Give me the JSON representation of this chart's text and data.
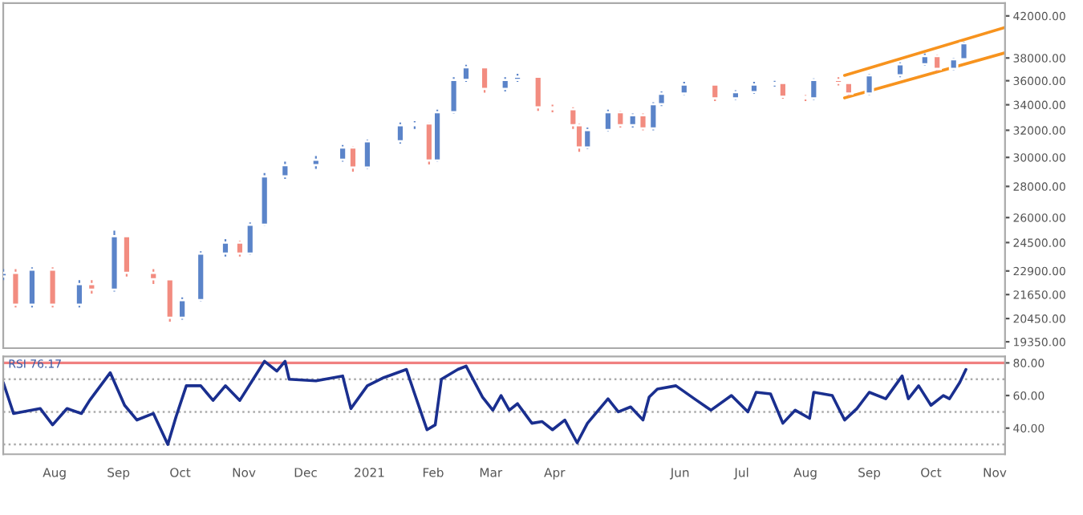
{
  "chart_data": [
    {
      "type": "candlestick",
      "x": [
        "2020-07-07",
        "2020-07-13",
        "2020-07-21",
        "2020-07-31",
        "2020-08-13",
        "2020-08-19",
        "2020-08-30",
        "2020-09-05",
        "2020-09-18",
        "2020-09-26",
        "2020-10-02",
        "2020-10-11",
        "2020-10-23",
        "2020-10-30",
        "2020-11-04",
        "2020-11-11",
        "2020-11-21",
        "2020-12-06",
        "2020-12-19",
        "2020-12-24",
        "2020-12-31",
        "2021-01-16",
        "2021-01-23",
        "2021-01-30",
        "2021-02-03",
        "2021-02-11",
        "2021-02-17",
        "2021-02-26",
        "2021-03-08",
        "2021-03-14",
        "2021-03-24",
        "2021-03-31",
        "2021-04-10",
        "2021-04-13",
        "2021-04-17",
        "2021-04-27",
        "2021-05-03",
        "2021-05-09",
        "2021-05-14",
        "2021-05-19",
        "2021-05-23",
        "2021-06-03",
        "2021-06-18",
        "2021-06-28",
        "2021-07-07",
        "2021-07-17",
        "2021-07-21",
        "2021-08-01",
        "2021-08-05",
        "2021-08-17",
        "2021-08-22",
        "2021-09-01",
        "2021-09-16",
        "2021-09-28",
        "2021-10-04",
        "2021-10-12",
        "2021-10-17"
      ],
      "ohlc": [
        [
          22600,
          23000,
          22400,
          22800
        ],
        [
          22800,
          23000,
          21000,
          21130
        ],
        [
          21130,
          23100,
          21000,
          22970
        ],
        [
          22970,
          23100,
          21000,
          21130
        ],
        [
          21130,
          22400,
          21000,
          22200
        ],
        [
          22200,
          22400,
          21700,
          21900
        ],
        [
          21900,
          25200,
          21800,
          24880
        ],
        [
          24880,
          24900,
          22600,
          22800
        ],
        [
          22800,
          23000,
          22200,
          22450
        ],
        [
          22450,
          22500,
          20300,
          20490
        ],
        [
          20490,
          21500,
          20400,
          21370
        ],
        [
          21370,
          24000,
          21300,
          23870
        ],
        [
          23870,
          24700,
          23700,
          24500
        ],
        [
          24500,
          24600,
          23700,
          23870
        ],
        [
          23870,
          25700,
          23800,
          25560
        ],
        [
          25560,
          28900,
          25500,
          28680
        ],
        [
          28680,
          29700,
          28500,
          29450
        ],
        [
          29450,
          30100,
          29200,
          29840
        ],
        [
          29840,
          30900,
          29700,
          30710
        ],
        [
          30710,
          30800,
          29000,
          29280
        ],
        [
          29280,
          31300,
          29200,
          31170
        ],
        [
          31170,
          32600,
          31000,
          32390
        ],
        [
          32390,
          32700,
          32100,
          32520
        ],
        [
          32520,
          32600,
          29500,
          29780
        ],
        [
          29780,
          33600,
          29700,
          33410
        ],
        [
          33410,
          36300,
          33300,
          36070
        ],
        [
          36070,
          37400,
          35900,
          37170
        ],
        [
          37170,
          37200,
          35000,
          35310
        ],
        [
          35310,
          36300,
          35100,
          36070
        ],
        [
          36070,
          36600,
          35900,
          36350
        ],
        [
          36350,
          36400,
          33500,
          33790
        ],
        [
          33790,
          34000,
          33400,
          33650
        ],
        [
          33650,
          33800,
          32100,
          32390
        ],
        [
          32390,
          32500,
          30400,
          30710
        ],
        [
          30710,
          32200,
          30600,
          32010
        ],
        [
          32010,
          33600,
          31900,
          33410
        ],
        [
          33410,
          33500,
          32200,
          32390
        ],
        [
          32390,
          33300,
          32200,
          33160
        ],
        [
          33160,
          33300,
          32000,
          32140
        ],
        [
          32140,
          34200,
          32000,
          34040
        ],
        [
          34040,
          35100,
          33900,
          34910
        ],
        [
          34910,
          35900,
          34800,
          35680
        ],
        [
          35680,
          35700,
          34300,
          34520
        ],
        [
          34520,
          35200,
          34400,
          35040
        ],
        [
          35040,
          35900,
          34900,
          35680
        ],
        [
          35680,
          36000,
          35500,
          35820
        ],
        [
          35820,
          35900,
          34500,
          34650
        ],
        [
          34650,
          34800,
          34300,
          34520
        ],
        [
          34520,
          36200,
          34400,
          36070
        ],
        [
          36070,
          36300,
          35600,
          35820
        ],
        [
          35820,
          35900,
          34700,
          34910
        ],
        [
          34910,
          36600,
          34800,
          36460
        ],
        [
          36460,
          37600,
          36300,
          37440
        ],
        [
          37440,
          38400,
          37300,
          38180
        ],
        [
          38180,
          38300,
          36800,
          37020
        ],
        [
          37020,
          38000,
          36900,
          37880
        ],
        [
          37880,
          39500,
          37800,
          39360
        ]
      ],
      "colors": [
        "#5b84c9",
        "#f28c80",
        "#5b84c9",
        "#f28c80",
        "#5b84c9",
        "#f28c80",
        "#5b84c9",
        "#f28c80",
        "#f28c80",
        "#f28c80",
        "#5b84c9",
        "#5b84c9",
        "#5b84c9",
        "#f28c80",
        "#5b84c9",
        "#5b84c9",
        "#5b84c9",
        "#5b84c9",
        "#5b84c9",
        "#f28c80",
        "#5b84c9",
        "#5b84c9",
        "#5b84c9",
        "#f28c80",
        "#5b84c9",
        "#5b84c9",
        "#5b84c9",
        "#f28c80",
        "#5b84c9",
        "#5b84c9",
        "#f28c80",
        "#f28c80",
        "#f28c80",
        "#f28c80",
        "#5b84c9",
        "#5b84c9",
        "#f28c80",
        "#5b84c9",
        "#f28c80",
        "#5b84c9",
        "#5b84c9",
        "#5b84c9",
        "#f28c80",
        "#5b84c9",
        "#5b84c9",
        "#5b84c9",
        "#f28c80",
        "#f28c80",
        "#5b84c9",
        "#f28c80",
        "#f28c80",
        "#5b84c9",
        "#5b84c9",
        "#5b84c9",
        "#f28c80",
        "#5b84c9",
        "#5b84c9"
      ],
      "series": [
        {
          "type": "line",
          "color": "#f7931e",
          "x": [
            "2021-08-20",
            "2021-11-06"
          ],
          "values": [
            36460,
            40860
          ]
        },
        {
          "type": "line",
          "color": "#f7931e",
          "x": [
            "2021-08-20",
            "2021-11-06"
          ],
          "values": [
            34560,
            38470
          ]
        }
      ],
      "log": true,
      "xlim": [
        "2020-07-07",
        "2021-11-06"
      ],
      "ylim": [
        19060,
        43300
      ],
      "yticks": [
        {
          "value": 19350,
          "label": "19350.00"
        },
        {
          "value": 20450,
          "label": "20450.00"
        },
        {
          "value": 21650,
          "label": "21650.00"
        },
        {
          "value": 22900,
          "label": "22900.00"
        },
        {
          "value": 24500,
          "label": "24500.00"
        },
        {
          "value": 26000,
          "label": "26000.00"
        },
        {
          "value": 28000,
          "label": "28000.00"
        },
        {
          "value": 30000,
          "label": "30000.00"
        },
        {
          "value": 32000,
          "label": "32000.00"
        },
        {
          "value": 34000,
          "label": "34000.00"
        },
        {
          "value": 36000,
          "label": "36000.00"
        },
        {
          "value": 38000,
          "label": "38000.00"
        },
        {
          "value": 42000,
          "label": "42000.00"
        }
      ],
      "tick_labels": "y",
      "grid": false,
      "legend": false
    },
    {
      "type": "line",
      "x": [
        "2020-07-07",
        "2020-07-12",
        "2020-07-25",
        "2020-07-31",
        "2020-08-07",
        "2020-08-14",
        "2020-08-18",
        "2020-08-28",
        "2020-09-04",
        "2020-09-10",
        "2020-09-18",
        "2020-09-25",
        "2020-09-29",
        "2020-10-04",
        "2020-10-11",
        "2020-10-17",
        "2020-10-23",
        "2020-10-30",
        "2020-11-05",
        "2020-11-11",
        "2020-11-17",
        "2020-11-21",
        "2020-11-23",
        "2020-12-06",
        "2020-12-19",
        "2020-12-23",
        "2020-12-31",
        "2021-01-08",
        "2021-01-19",
        "2021-01-23",
        "2021-01-29",
        "2021-02-02",
        "2021-02-05",
        "2021-02-13",
        "2021-02-17",
        "2021-02-25",
        "2021-03-02",
        "2021-03-06",
        "2021-03-10",
        "2021-03-14",
        "2021-03-21",
        "2021-03-26",
        "2021-03-31",
        "2021-04-06",
        "2021-04-12",
        "2021-04-17",
        "2021-04-27",
        "2021-05-02",
        "2021-05-08",
        "2021-05-14",
        "2021-05-17",
        "2021-05-21",
        "2021-05-30",
        "2021-06-08",
        "2021-06-16",
        "2021-06-26",
        "2021-07-04",
        "2021-07-08",
        "2021-07-15",
        "2021-07-21",
        "2021-07-27",
        "2021-08-03",
        "2021-08-05",
        "2021-08-14",
        "2021-08-20",
        "2021-08-26",
        "2021-09-01",
        "2021-09-09",
        "2021-09-17",
        "2021-09-20",
        "2021-09-25",
        "2021-10-01",
        "2021-10-07",
        "2021-10-10",
        "2021-10-15",
        "2021-10-18"
      ],
      "series": [
        {
          "color": "#1a2f8f",
          "values": [
            68,
            49,
            52,
            42,
            52,
            49,
            57,
            74,
            54,
            45,
            49,
            30,
            47,
            66,
            66,
            57,
            66,
            57,
            69,
            81,
            75,
            81,
            70,
            69,
            72,
            52,
            66,
            71,
            76,
            61,
            39,
            42,
            70,
            76,
            78,
            59,
            51,
            60,
            51,
            55,
            43,
            44,
            39,
            45,
            31,
            43,
            58,
            50,
            53,
            45,
            59,
            64,
            66,
            58,
            51,
            60,
            50,
            62,
            61,
            43,
            51,
            46,
            62,
            60,
            45,
            52,
            62,
            58,
            72,
            58,
            66,
            54,
            60,
            58,
            68,
            76
          ]
        }
      ],
      "xlim": [
        "2020-07-07",
        "2021-11-06"
      ],
      "ylim": [
        24,
        84
      ],
      "yticks": [
        {
          "value": 40,
          "label": "40.00"
        },
        {
          "value": 60,
          "label": "60.00"
        },
        {
          "value": 80,
          "label": "80.00"
        }
      ],
      "xticks": [
        {
          "value": "2020-08-01",
          "label": "Aug"
        },
        {
          "value": "2020-09-01",
          "label": "Sep"
        },
        {
          "value": "2020-10-01",
          "label": "Oct"
        },
        {
          "value": "2020-11-01",
          "label": "Nov"
        },
        {
          "value": "2020-12-01",
          "label": "Dec"
        },
        {
          "value": "2021-01-01",
          "label": "2021"
        },
        {
          "value": "2021-02-01",
          "label": "Feb"
        },
        {
          "value": "2021-03-01",
          "label": "Mar"
        },
        {
          "value": "2021-04-01",
          "label": "Apr"
        },
        {
          "value": "2021-06-01",
          "label": "Jun"
        },
        {
          "value": "2021-07-01",
          "label": "Jul"
        },
        {
          "value": "2021-08-01",
          "label": "Aug"
        },
        {
          "value": "2021-09-01",
          "label": "Sep"
        },
        {
          "value": "2021-10-01",
          "label": "Oct"
        },
        {
          "value": "2021-11-01",
          "label": "Nov"
        }
      ],
      "ref_lines": [
        {
          "axis": "y",
          "value": 80,
          "color": "#f08080",
          "line_style": "solid"
        },
        {
          "axis": "y",
          "value": 70,
          "color": "#aaaaaa",
          "line_style": "dotted"
        },
        {
          "axis": "y",
          "value": 50,
          "color": "#aaaaaa",
          "line_style": "dotted"
        },
        {
          "axis": "y",
          "value": 30,
          "color": "#aaaaaa",
          "line_style": "dotted"
        }
      ],
      "annotations": [
        "RSI 76.17"
      ],
      "grid": false,
      "legend": false
    }
  ]
}
